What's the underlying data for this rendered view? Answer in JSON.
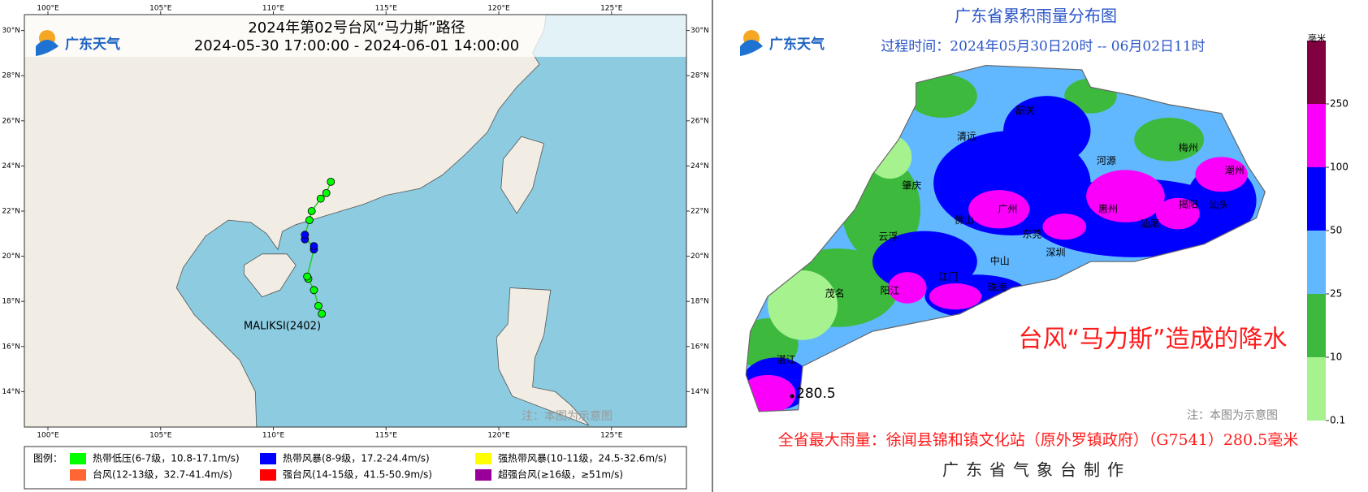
{
  "left_map": {
    "title": "2024年第02号台风“马力斯”路径",
    "subtitle": "2024-05-30 17:00:00 - 2024-06-01 14:00:00",
    "logo": "广东天气",
    "lon_ticks": [
      {
        "value": 100,
        "label": "100°E"
      },
      {
        "value": 105,
        "label": "105°E"
      },
      {
        "value": 110,
        "label": "110°E"
      },
      {
        "value": 115,
        "label": "115°E"
      },
      {
        "value": 120,
        "label": "120°E"
      },
      {
        "value": 125,
        "label": "125°E"
      }
    ],
    "lat_ticks": [
      {
        "value": 30,
        "label": "30°N"
      },
      {
        "value": 28,
        "label": "28°N"
      },
      {
        "value": 26,
        "label": "26°N"
      },
      {
        "value": 24,
        "label": "24°N"
      },
      {
        "value": 22,
        "label": "22°N"
      },
      {
        "value": 20,
        "label": "20°N"
      },
      {
        "value": 18,
        "label": "18°N"
      },
      {
        "value": 16,
        "label": "16°N"
      },
      {
        "value": 14,
        "label": "14°N"
      }
    ],
    "track": {
      "lon": [
        112.15,
        112.0,
        111.8,
        111.55,
        111.5,
        111.8,
        111.8,
        111.4,
        111.4,
        111.6,
        111.7,
        112.1,
        112.35,
        112.55
      ],
      "lat": [
        17.45,
        17.8,
        18.5,
        19.0,
        19.1,
        20.3,
        20.45,
        20.75,
        20.95,
        21.6,
        22.0,
        22.55,
        22.8,
        23.3
      ],
      "colors": [
        "#00ff00",
        "#00ff00",
        "#00ff00",
        "#00ff00",
        "#00ff00",
        "#0000ff",
        "#0000ff",
        "#0000ff",
        "#0000ff",
        "#00ff00",
        "#00ff00",
        "#00ff00",
        "#00ff00",
        "#00ff00"
      ]
    },
    "track_label": "MALIKSI(2402)",
    "watermark": "注：本图为示意图",
    "legend_title": "图例：",
    "legend": [
      {
        "name": "热带低压(6-7级，10.8-17.1m/s)",
        "color": "#00ff00"
      },
      {
        "name": "热带风暴(8-9级，17.2-24.4m/s)",
        "color": "#0000ff"
      },
      {
        "name": "强热带风暴(10-11级，24.5-32.6m/s)",
        "color": "#ffff00"
      },
      {
        "name": "台风(12-13级，32.7-41.4m/s)",
        "color": "#ff6633"
      },
      {
        "name": "强台风(14-15级，41.5-50.9m/s)",
        "color": "#ff0000"
      },
      {
        "name": "超强台风(≥16级，≥51m/s)",
        "color": "#990099"
      }
    ]
  },
  "right_map": {
    "title": "广东省累积雨量分布图",
    "period": "过程时间：2024年05月30日20时 -- 06月02日11时",
    "logo": "广东天气",
    "colorbar_unit": "毫米",
    "colorbar_ticks": [
      0.1,
      10,
      25,
      50,
      100,
      250
    ],
    "colorbar_colors": [
      "#a6f28f",
      "#3dba3d",
      "#61b8ff",
      "#0000ff",
      "#fa00fa",
      "#800040"
    ],
    "cities": [
      "韶关",
      "清远",
      "河源",
      "梅州",
      "潮州",
      "肇庆",
      "广州",
      "佛山",
      "惠州",
      "揭阳",
      "汕头",
      "汕尾",
      "云浮",
      "东莞",
      "深圳",
      "中山",
      "江门",
      "珠海",
      "阳江",
      "茂名",
      "湛江"
    ],
    "max_point_label": "280.5",
    "headline": "台风“马力斯”造成的降水",
    "watermark": "注：本图为示意图",
    "max_rain": "全省最大雨量：徐闻县锦和镇文化站（原外罗镇政府）（G7541）280.5毫米",
    "footer": "广东省气象台制作"
  }
}
